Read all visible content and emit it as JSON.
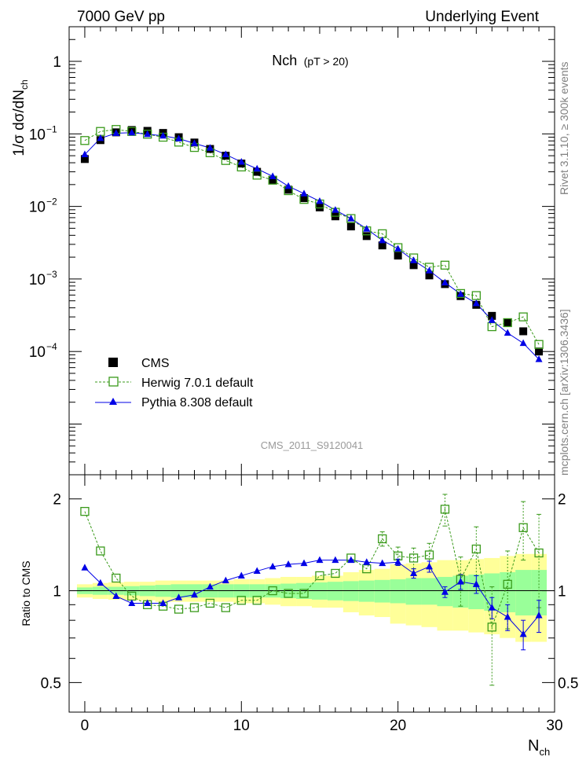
{
  "header": {
    "energy_label": "7000 GeV pp",
    "process_label": "Underlying Event"
  },
  "side_labels": {
    "rivet": "Rivet 3.1.10, ≥ 300k events",
    "mcplots": "mcplots.cern.ch [arXiv:1306.3436]"
  },
  "chart_data": {
    "type": "line",
    "title_main": "Nch",
    "title_sub": "(pT > 20)",
    "analysis_tag": "CMS_2011_S9120041",
    "xlabel": "N",
    "xlabel_sub": "ch",
    "ylabel": "1/σ dσ/dN",
    "ylabel_sub": "ch",
    "ratio_ylabel": "Ratio to CMS",
    "xlim": [
      -1,
      30
    ],
    "ylim": [
      2e-06,
      3
    ],
    "yscale": "log",
    "ratio_ylim": [
      0.4,
      2.4
    ],
    "x_tick_labels": [
      "0",
      "10",
      "20",
      "30"
    ],
    "y_tick_labels": [
      {
        "mantissa": "10",
        "exp": "−4",
        "value": 0.0001
      },
      {
        "mantissa": "10",
        "exp": "−3",
        "value": 0.001
      },
      {
        "mantissa": "10",
        "exp": "−2",
        "value": 0.01
      },
      {
        "mantissa": "10",
        "exp": "−1",
        "value": 0.1
      },
      {
        "mantissa": "1",
        "exp": "",
        "value": 1
      }
    ],
    "ratio_tick_labels": [
      {
        "label": "0.5",
        "value": 0.5
      },
      {
        "label": "1",
        "value": 1
      },
      {
        "label": "2",
        "value": 2
      }
    ],
    "x": [
      0,
      1,
      2,
      3,
      4,
      5,
      6,
      7,
      8,
      9,
      10,
      11,
      12,
      13,
      14,
      15,
      16,
      17,
      18,
      19,
      20,
      21,
      22,
      23,
      24,
      25,
      26,
      27,
      28,
      29
    ],
    "series": [
      {
        "name": "CMS",
        "legend": "CMS",
        "color": "#000000",
        "marker": "filled-square",
        "values": [
          0.045,
          0.082,
          0.105,
          0.113,
          0.11,
          0.103,
          0.09,
          0.076,
          0.062,
          0.05,
          0.039,
          0.03,
          0.023,
          0.017,
          0.013,
          0.0097,
          0.0073,
          0.0053,
          0.0039,
          0.0029,
          0.0021,
          0.00155,
          0.00112,
          0.00085,
          0.00058,
          0.00044,
          0.00031,
          0.00025,
          0.00019,
          0.0001
        ]
      },
      {
        "name": "Herwig",
        "legend": "Herwig 7.0.1 default",
        "color": "#3a9a1b",
        "marker": "open-square",
        "dashed": true,
        "values": [
          0.081,
          0.108,
          0.115,
          0.108,
          0.099,
          0.09,
          0.077,
          0.065,
          0.055,
          0.043,
          0.035,
          0.027,
          0.023,
          0.0165,
          0.0125,
          0.0108,
          0.0083,
          0.0068,
          0.0046,
          0.0042,
          0.0027,
          0.00195,
          0.00145,
          0.00155,
          0.00063,
          0.00059,
          0.00022,
          0.00025,
          0.0003,
          0.000125
        ],
        "ratio": [
          1.82,
          1.35,
          1.1,
          0.96,
          0.9,
          0.89,
          0.87,
          0.88,
          0.91,
          0.88,
          0.93,
          0.93,
          1.0,
          0.98,
          0.98,
          1.12,
          1.14,
          1.28,
          1.18,
          1.48,
          1.3,
          1.28,
          1.31,
          1.85,
          1.09,
          1.37,
          0.76,
          1.05,
          1.61,
          1.33
        ],
        "ratio_err": [
          0,
          0,
          0,
          0,
          0,
          0,
          0,
          0,
          0,
          0,
          0,
          0,
          0,
          0,
          0,
          0,
          0,
          0,
          0,
          0.08,
          0.09,
          0.1,
          0.12,
          0.22,
          0.2,
          0.25,
          0.27,
          0.3,
          0.35,
          0.45
        ]
      },
      {
        "name": "Pythia",
        "legend": "Pythia 8.308 default",
        "color": "#0000e6",
        "marker": "filled-triangle",
        "values": [
          0.052,
          0.087,
          0.102,
          0.104,
          0.099,
          0.094,
          0.086,
          0.074,
          0.064,
          0.052,
          0.041,
          0.033,
          0.026,
          0.019,
          0.015,
          0.0118,
          0.0089,
          0.0068,
          0.0049,
          0.0034,
          0.0026,
          0.0018,
          0.0013,
          0.00089,
          0.00062,
          0.00046,
          0.00027,
          0.00018,
          0.00013,
          7.8e-05
        ],
        "ratio": [
          1.19,
          1.06,
          0.96,
          0.91,
          0.91,
          0.91,
          0.95,
          0.97,
          1.03,
          1.08,
          1.12,
          1.16,
          1.2,
          1.22,
          1.23,
          1.26,
          1.26,
          1.26,
          1.24,
          1.23,
          1.24,
          1.14,
          1.2,
          0.99,
          1.07,
          1.05,
          0.88,
          0.82,
          0.72,
          0.83
        ],
        "ratio_err": [
          0,
          0,
          0,
          0,
          0,
          0,
          0,
          0,
          0,
          0,
          0,
          0,
          0,
          0,
          0,
          0,
          0,
          0,
          0,
          0,
          0.03,
          0.04,
          0.05,
          0.04,
          0.06,
          0.07,
          0.07,
          0.08,
          0.08,
          0.1
        ]
      }
    ],
    "uncertainty_bands": {
      "x_edges": [
        -0.5,
        0.5,
        1.5,
        2.5,
        3.5,
        4.5,
        5.5,
        6.5,
        7.5,
        8.5,
        9.5,
        10.5,
        11.5,
        12.5,
        13.5,
        14.5,
        15.5,
        16.5,
        17.5,
        18.5,
        19.5,
        20.5,
        21.5,
        22.5,
        23.5,
        24.5,
        25.5,
        26.5,
        27.5,
        28.5,
        29.5
      ],
      "stat": [
        0.025,
        0.03,
        0.03,
        0.035,
        0.04,
        0.045,
        0.05,
        0.05,
        0.05,
        0.05,
        0.05,
        0.05,
        0.05,
        0.055,
        0.06,
        0.065,
        0.07,
        0.075,
        0.08,
        0.085,
        0.09,
        0.1,
        0.1,
        0.11,
        0.12,
        0.13,
        0.14,
        0.15,
        0.17,
        0.17
      ],
      "total": [
        0.05,
        0.06,
        0.065,
        0.07,
        0.07,
        0.08,
        0.08,
        0.08,
        0.08,
        0.08,
        0.09,
        0.09,
        0.1,
        0.11,
        0.11,
        0.12,
        0.12,
        0.15,
        0.17,
        0.18,
        0.22,
        0.23,
        0.24,
        0.26,
        0.26,
        0.27,
        0.28,
        0.3,
        0.32,
        0.32
      ],
      "stat_color": "#99ff99",
      "total_color": "#ffff99"
    },
    "legend_position": "bottom-left"
  }
}
